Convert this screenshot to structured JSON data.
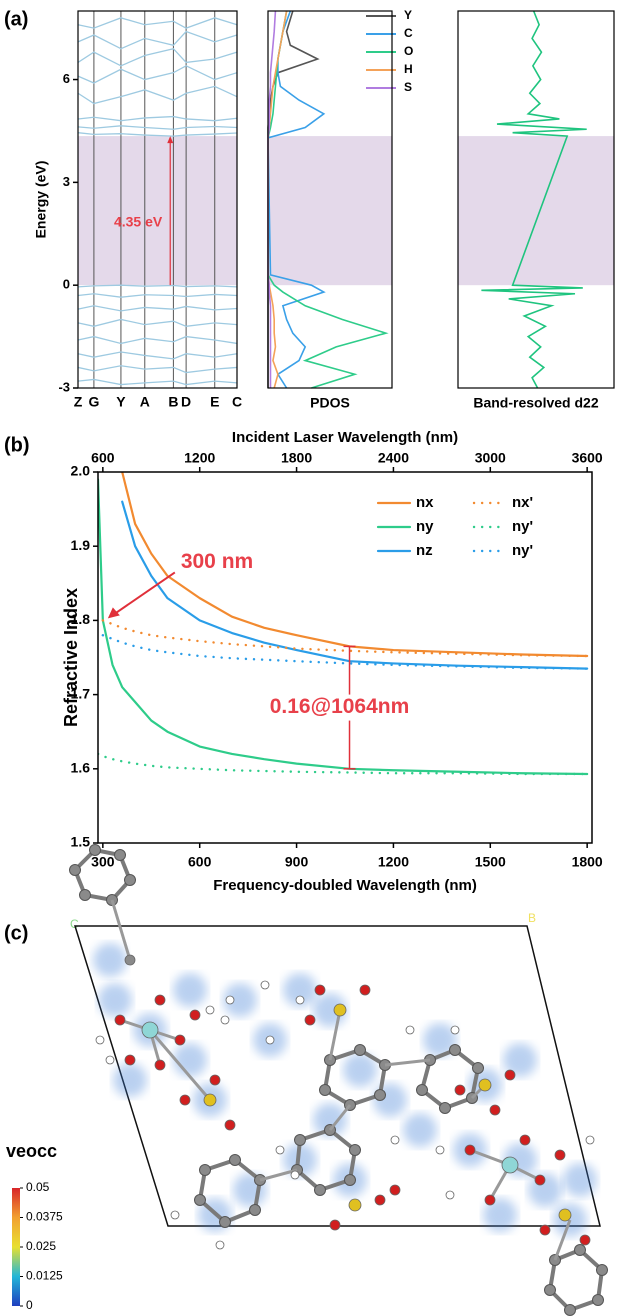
{
  "chart_data": [
    {
      "type": "band",
      "panel": "(a)",
      "ylabel": "Energy (eV)",
      "ylim": [
        -3,
        8
      ],
      "yticks": [
        -3,
        0,
        3,
        6
      ],
      "xlim": [
        0,
        1
      ],
      "xticks": [
        {
          "value": 0,
          "label": "Z"
        },
        {
          "value": 0.1,
          "label": "G"
        },
        {
          "value": 0.27,
          "label": "Y"
        },
        {
          "value": 0.42,
          "label": "A"
        },
        {
          "value": 0.6,
          "label": "B"
        },
        {
          "value": 0.68,
          "label": "D"
        },
        {
          "value": 0.86,
          "label": "E"
        },
        {
          "value": 1,
          "label": "C"
        }
      ],
      "shade": [
        0,
        4.35
      ],
      "color": "#9ecae1",
      "annotation": {
        "text": "4.35 eV",
        "x": 0.58,
        "y": [
          0,
          4.35
        ]
      },
      "bands": [
        [
          4.45,
          4.4,
          4.42,
          4.38,
          4.35,
          4.38,
          4.41,
          4.44
        ],
        [
          4.62,
          4.58,
          4.65,
          4.6,
          4.55,
          4.6,
          4.63,
          4.6
        ],
        [
          4.85,
          4.9,
          4.8,
          4.88,
          4.92,
          4.85,
          4.8,
          4.87
        ],
        [
          5.6,
          5.3,
          5.5,
          5.7,
          5.4,
          5.6,
          5.8,
          5.5
        ],
        [
          6.1,
          5.9,
          6.3,
          6.0,
          6.2,
          6.4,
          6.0,
          6.2
        ],
        [
          6.5,
          6.8,
          6.4,
          6.7,
          6.9,
          6.5,
          6.6,
          6.8
        ],
        [
          7.1,
          7.3,
          6.9,
          7.2,
          7.0,
          7.4,
          7.1,
          7.3
        ],
        [
          7.6,
          7.5,
          7.8,
          7.6,
          7.7,
          7.5,
          7.8,
          7.6
        ],
        [
          -0.05,
          -0.02,
          0,
          -0.03,
          -0.01,
          -0.04,
          -0.02,
          -0.05
        ],
        [
          -0.3,
          -0.25,
          -0.35,
          -0.28,
          -0.3,
          -0.33,
          -0.27,
          -0.3
        ],
        [
          -0.7,
          -0.6,
          -0.75,
          -0.65,
          -0.7,
          -0.62,
          -0.72,
          -0.68
        ],
        [
          -1.1,
          -1.2,
          -1.0,
          -1.15,
          -1.05,
          -1.2,
          -1.1,
          -1.15
        ],
        [
          -1.6,
          -1.5,
          -1.7,
          -1.55,
          -1.65,
          -1.5,
          -1.6,
          -1.7
        ],
        [
          -2.0,
          -2.1,
          -1.95,
          -2.05,
          -2.15,
          -2.0,
          -2.1,
          -2.0
        ],
        [
          -2.4,
          -2.5,
          -2.35,
          -2.45,
          -2.4,
          -2.55,
          -2.45,
          -2.4
        ],
        [
          -2.8,
          -2.75,
          -2.9,
          -2.85,
          -2.8,
          -2.9,
          -2.8,
          -2.85
        ]
      ]
    },
    {
      "type": "dos",
      "xlabel": "PDOS",
      "ylim": [
        -3,
        8
      ],
      "xlim": [
        0,
        1
      ],
      "shade": [
        0,
        4.35
      ],
      "y": [
        -3,
        -2.6,
        -2.2,
        -1.8,
        -1.4,
        -1,
        -0.6,
        -0.2,
        0,
        0.3,
        4.3,
        4.6,
        5,
        5.4,
        5.8,
        6.2,
        6.6,
        7,
        7.4,
        8
      ],
      "series": [
        {
          "name": "Y",
          "color": "#555555",
          "values": [
            0,
            0,
            0,
            0,
            0,
            0,
            0,
            0,
            0,
            0,
            0,
            0,
            0.01,
            0.02,
            0.04,
            0.08,
            0.4,
            0.18,
            0.15,
            0.2
          ]
        },
        {
          "name": "C",
          "color": "#3aa0e8",
          "values": [
            0.15,
            0.08,
            0.25,
            0.3,
            0.2,
            0.15,
            0.12,
            0.45,
            0.35,
            0.02,
            0,
            0.3,
            0.45,
            0.25,
            0.1,
            0.08,
            0.08,
            0.1,
            0.12,
            0.18
          ]
        },
        {
          "name": "O",
          "color": "#2ecc8a",
          "values": [
            0.35,
            0.7,
            0.3,
            0.55,
            0.95,
            0.6,
            0.3,
            0.12,
            0.05,
            0,
            0,
            0.02,
            0.04,
            0.05,
            0.06,
            0.07,
            0.08,
            0.1,
            0.12,
            0.15
          ]
        },
        {
          "name": "H",
          "color": "#f4a259",
          "values": [
            0.05,
            0.08,
            0.04,
            0.06,
            0.05,
            0.05,
            0.04,
            0.02,
            0.01,
            0,
            0,
            0.01,
            0.02,
            0.03,
            0.04,
            0.06,
            0.08,
            0.1,
            0.12,
            0.15
          ]
        },
        {
          "name": "S",
          "color": "#b07ce0",
          "values": [
            0.02,
            0.02,
            0.02,
            0.02,
            0.02,
            0.02,
            0.02,
            0.01,
            0.01,
            0,
            0,
            0.01,
            0.01,
            0.01,
            0.02,
            0.02,
            0.03,
            0.04,
            0.05,
            0.06
          ]
        }
      ]
    },
    {
      "type": "dos",
      "xlabel": "Band-resolved d22",
      "ylim": [
        -3,
        8
      ],
      "xlim": [
        -1,
        1
      ],
      "shade": [
        0,
        4.35
      ],
      "y": [
        -3,
        -2.7,
        -2.4,
        -2.1,
        -1.8,
        -1.5,
        -1.2,
        -0.9,
        -0.6,
        -0.4,
        -0.25,
        -0.15,
        -0.08,
        0,
        4.35,
        4.45,
        4.55,
        4.7,
        4.85,
        5,
        5.3,
        5.6,
        6,
        6.4,
        6.8,
        7.2,
        7.6,
        8
      ],
      "series": [
        {
          "color": "#1fc47f",
          "values": [
            0.02,
            -0.05,
            0.1,
            -0.08,
            0.06,
            -0.1,
            0.12,
            -0.15,
            0.2,
            -0.35,
            0.5,
            -0.7,
            0.6,
            -0.3,
            0.4,
            -0.3,
            0.65,
            -0.5,
            0.3,
            -0.1,
            0.05,
            -0.08,
            0.06,
            -0.04,
            0.07,
            -0.05,
            0.04,
            -0.03
          ]
        }
      ]
    },
    {
      "type": "line",
      "panel": "(b)",
      "ylabel": "Refractive Index",
      "xlabel": "Frequency-doubled Wavelength (nm)",
      "x2label": "Incident Laser Wavelength (nm)",
      "xlim": [
        285,
        1815
      ],
      "xticks": [
        300,
        600,
        900,
        1200,
        1500,
        1800
      ],
      "x2lim": [
        570,
        3630
      ],
      "x2ticks": [
        600,
        1200,
        1800,
        2400,
        3000,
        3600
      ],
      "ylim": [
        1.5,
        2
      ],
      "yticks": [
        1.5,
        1.6,
        1.7,
        1.8,
        1.9,
        {
          "value": 2,
          "label": "2.0"
        }
      ],
      "x": [
        285,
        300,
        330,
        360,
        400,
        450,
        500,
        600,
        700,
        800,
        900,
        1064,
        1200,
        1400,
        1600,
        1800
      ],
      "series": [
        {
          "name": "nx",
          "color": "#f28a30",
          "dash": "solid",
          "values": [
            null,
            null,
            null,
            2.0,
            1.93,
            1.89,
            1.86,
            1.83,
            1.805,
            1.79,
            1.78,
            1.765,
            1.76,
            1.757,
            1.754,
            1.752
          ]
        },
        {
          "name": "ny",
          "color": "#2ecc8a",
          "dash": "solid",
          "values": [
            1.99,
            1.8,
            1.74,
            1.71,
            1.69,
            1.665,
            1.65,
            1.63,
            1.62,
            1.613,
            1.607,
            1.6,
            1.598,
            1.596,
            1.594,
            1.593
          ]
        },
        {
          "name": "nz",
          "color": "#2a9de8",
          "dash": "solid",
          "values": [
            null,
            null,
            null,
            1.96,
            1.9,
            1.86,
            1.83,
            1.8,
            1.783,
            1.77,
            1.76,
            1.745,
            1.742,
            1.739,
            1.737,
            1.735
          ]
        },
        {
          "name": "nx'",
          "color": "#f28a30",
          "dash": "dotted",
          "values": [
            null,
            1.8,
            1.795,
            1.79,
            1.785,
            1.78,
            1.777,
            1.772,
            1.768,
            1.765,
            1.762,
            1.759,
            1.757,
            1.755,
            1.753,
            1.752
          ]
        },
        {
          "name": "ny'",
          "color": "#2ecc8a",
          "dash": "dotted",
          "values": [
            1.62,
            1.617,
            1.613,
            1.61,
            1.607,
            1.604,
            1.602,
            1.6,
            1.598,
            1.597,
            1.596,
            1.595,
            1.594,
            1.594,
            1.593,
            1.593
          ]
        },
        {
          "name": "ny'",
          "color": "#2a9de8",
          "dash": "dotted",
          "values": [
            null,
            1.78,
            1.775,
            1.77,
            1.765,
            1.76,
            1.757,
            1.752,
            1.749,
            1.747,
            1.745,
            1.742,
            1.74,
            1.738,
            1.736,
            1.735
          ]
        }
      ],
      "annotations": [
        {
          "text": "300 nm",
          "x": 300,
          "y": 1.8
        },
        {
          "text": "0.16@1064nm",
          "x": 1064,
          "y": [
            1.6,
            1.765
          ]
        }
      ]
    }
  ],
  "structure": {
    "panel": "(c)",
    "corner_labels": [
      "C",
      "B"
    ],
    "colorbar": {
      "title": "veocc",
      "lim": [
        0,
        0.05
      ],
      "ticks": [
        0,
        0.0125,
        0.025,
        0.0375,
        0.05
      ]
    }
  }
}
